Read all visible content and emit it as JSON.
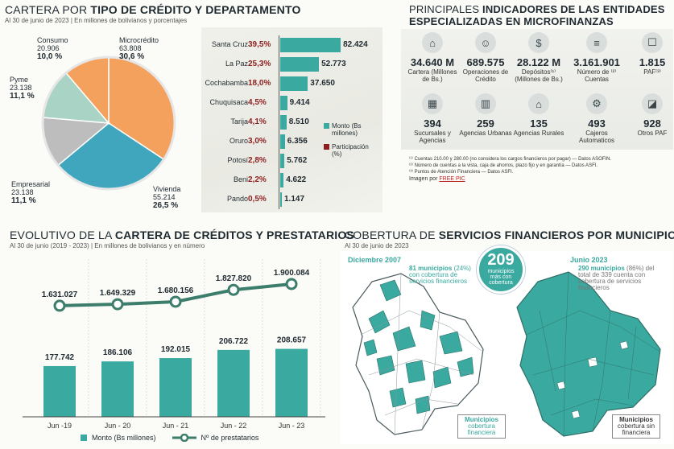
{
  "colors": {
    "teal": "#3aa99f",
    "red": "#8c1f1f",
    "orange": "#f4a15d",
    "blue": "#3fa6bd",
    "gray": "#bdbdbd",
    "light": "#a9d3c4"
  },
  "credit_section": {
    "title_light": "CARTERA POR ",
    "title_bold": "TIPO DE CRÉDITO Y DEPARTAMENTO",
    "subtitle": "Al 30 de junio de 2023 | En millones de bolivianos y porcentajes"
  },
  "indicators_section": {
    "title_light": "PRINCIPALES ",
    "title_bold1": "INDICADORES DE LAS ENTIDADES",
    "title_bold2": "ESPECIALIZADAS EN MICROFINANZAS"
  },
  "evolution_section": {
    "title_light": "EVOLUTIVO DE LA ",
    "title_bold": "CARTERA DE CRÉDITOS Y PRESTATARIOS",
    "subtitle": "Al 30 de junio (2019 - 2023) | En millones de bolivianos y en número"
  },
  "coverage_section": {
    "title_light": "COBERTURA DE ",
    "title_bold": "SERVICIOS FINANCIEROS POR MUNICIPIO",
    "subtitle": "Al 30 de junio de 2023"
  },
  "indicators": [
    {
      "icon": "bank-icon",
      "value": "34.640 M",
      "label": "Cartera (Millones de Bs.)"
    },
    {
      "icon": "person-icon",
      "value": "689.575",
      "label": "Operaciones de Crédito"
    },
    {
      "icon": "deposit-icon",
      "value": "28.122 M",
      "label": "Depósitos⁽¹⁾ (Millones de Bs.)"
    },
    {
      "icon": "accounts-icon",
      "value": "3.161.901",
      "label": "Número de ⁽²⁾ Cuentas"
    },
    {
      "icon": "paf-icon",
      "value": "1.815",
      "label": "PAF⁽³⁾"
    },
    {
      "icon": "branch-icon",
      "value": "394",
      "label": "Sucursales y Agencias"
    },
    {
      "icon": "urban-icon",
      "value": "259",
      "label": "Agencias Urbanas"
    },
    {
      "icon": "rural-icon",
      "value": "135",
      "label": "Agencias Rurales"
    },
    {
      "icon": "atm-icon",
      "value": "493",
      "label": "Cajeros Automaticos"
    },
    {
      "icon": "other-paf-icon",
      "value": "928",
      "label": "Otros PAF"
    }
  ],
  "notes": {
    "n1": "⁽¹⁾  Cuentas     210.00 y 280.00 (no considera los cargos financieros por pagar)    — Datos ASOFIN.",
    "n2": "⁽²⁾  Número de cuentas a la vista, caja de ahorros, plazo fijo y en garantía    — Datos ASFI.",
    "n3": "⁽³⁾  Puntos de Atención Financiera  — Datos ASFI.",
    "credit_label": "Imagen por ",
    "credit_link": "FREE PIC"
  },
  "map": {
    "left_year": "Diciembre 2007",
    "right_year": "Junio 2023",
    "center_number": "209",
    "center_text": "municipios más con cobertura",
    "left_bold": "81 municipios",
    "left_text": "(24%) con cobertura de servicios financieros",
    "right_bold": "290 municipios",
    "right_text": "(86%) del total de 339 cuenta con cobertura de servicios financieros",
    "legend_with_bold": "Municipios",
    "legend_with_text": "cobertura financiera",
    "legend_without_bold": "Municipios",
    "legend_without_text": "cobertura sin financiera"
  },
  "chart_data": [
    {
      "type": "pie",
      "title": "Cartera por tipo de crédito",
      "slices": [
        {
          "name": "Microcrédito",
          "value": "63.808",
          "percent": 30.6,
          "percent_label": "30,6 %",
          "color": "#f4a15d"
        },
        {
          "name": "Vivienda",
          "value": "55.214",
          "percent": 26.5,
          "percent_label": "26,5 %",
          "color": "#3fa6bd"
        },
        {
          "name": "Empresarial",
          "value": "23.138",
          "percent": 11.1,
          "percent_label": "11,1 %",
          "color": "#bdbdbd"
        },
        {
          "name": "Pyme",
          "value": "23.138",
          "percent": 11.1,
          "percent_label": "11,1 %",
          "color": "#a9d3c4"
        },
        {
          "name": "Consumo",
          "value": "20.906",
          "percent": 10.0,
          "percent_label": "10,0 %",
          "color": "#f4a15d"
        }
      ]
    },
    {
      "type": "bar",
      "title": "Cartera por departamento",
      "categories": [
        "Santa Cruz",
        "La Paz",
        "Cochabamba",
        "Chuquisaca",
        "Tarija",
        "Oruro",
        "Potosí",
        "Beni",
        "Pando"
      ],
      "series": [
        {
          "name": "Monto (Bs millones)",
          "values": [
            82424,
            52773,
            37650,
            9414,
            8510,
            6356,
            5762,
            4622,
            1147
          ],
          "labels": [
            "82.424",
            "52.773",
            "37.650",
            "9.414",
            "8.510",
            "6.356",
            "5.762",
            "4.622",
            "1.147"
          ]
        },
        {
          "name": "Participación (%)",
          "values": [
            39.5,
            25.3,
            18.0,
            4.5,
            4.1,
            3.0,
            2.8,
            2.2,
            0.5
          ],
          "labels": [
            "39,5%",
            "25,3%",
            "18,0%",
            "4,5%",
            "4,1%",
            "3,0%",
            "2,8%",
            "2,2%",
            "0,5%"
          ]
        }
      ],
      "legend": [
        "Monto (Bs millones)",
        "Participación (%)"
      ]
    },
    {
      "type": "bar",
      "title": "Evolutivo de la cartera de créditos y prestatarios",
      "categories": [
        "Jun -19",
        "Jun - 20",
        "Jun - 21",
        "Jun - 22",
        "Jun - 23"
      ],
      "series": [
        {
          "name": "Monto (Bs millones)",
          "values": [
            177742,
            186106,
            192015,
            206722,
            208657
          ],
          "labels": [
            "177.742",
            "186.106",
            "192.015",
            "206.722",
            "208.657"
          ]
        },
        {
          "name": "Nº de prestatarios",
          "values": [
            1631027,
            1649329,
            1680156,
            1827820,
            1900084
          ],
          "labels": [
            "1.631.027",
            "1.649.329",
            "1.680.156",
            "1.827.820",
            "1.900.084"
          ]
        }
      ],
      "legend": [
        "Monto (Bs millones)",
        "Nº de prestatarios"
      ]
    }
  ]
}
